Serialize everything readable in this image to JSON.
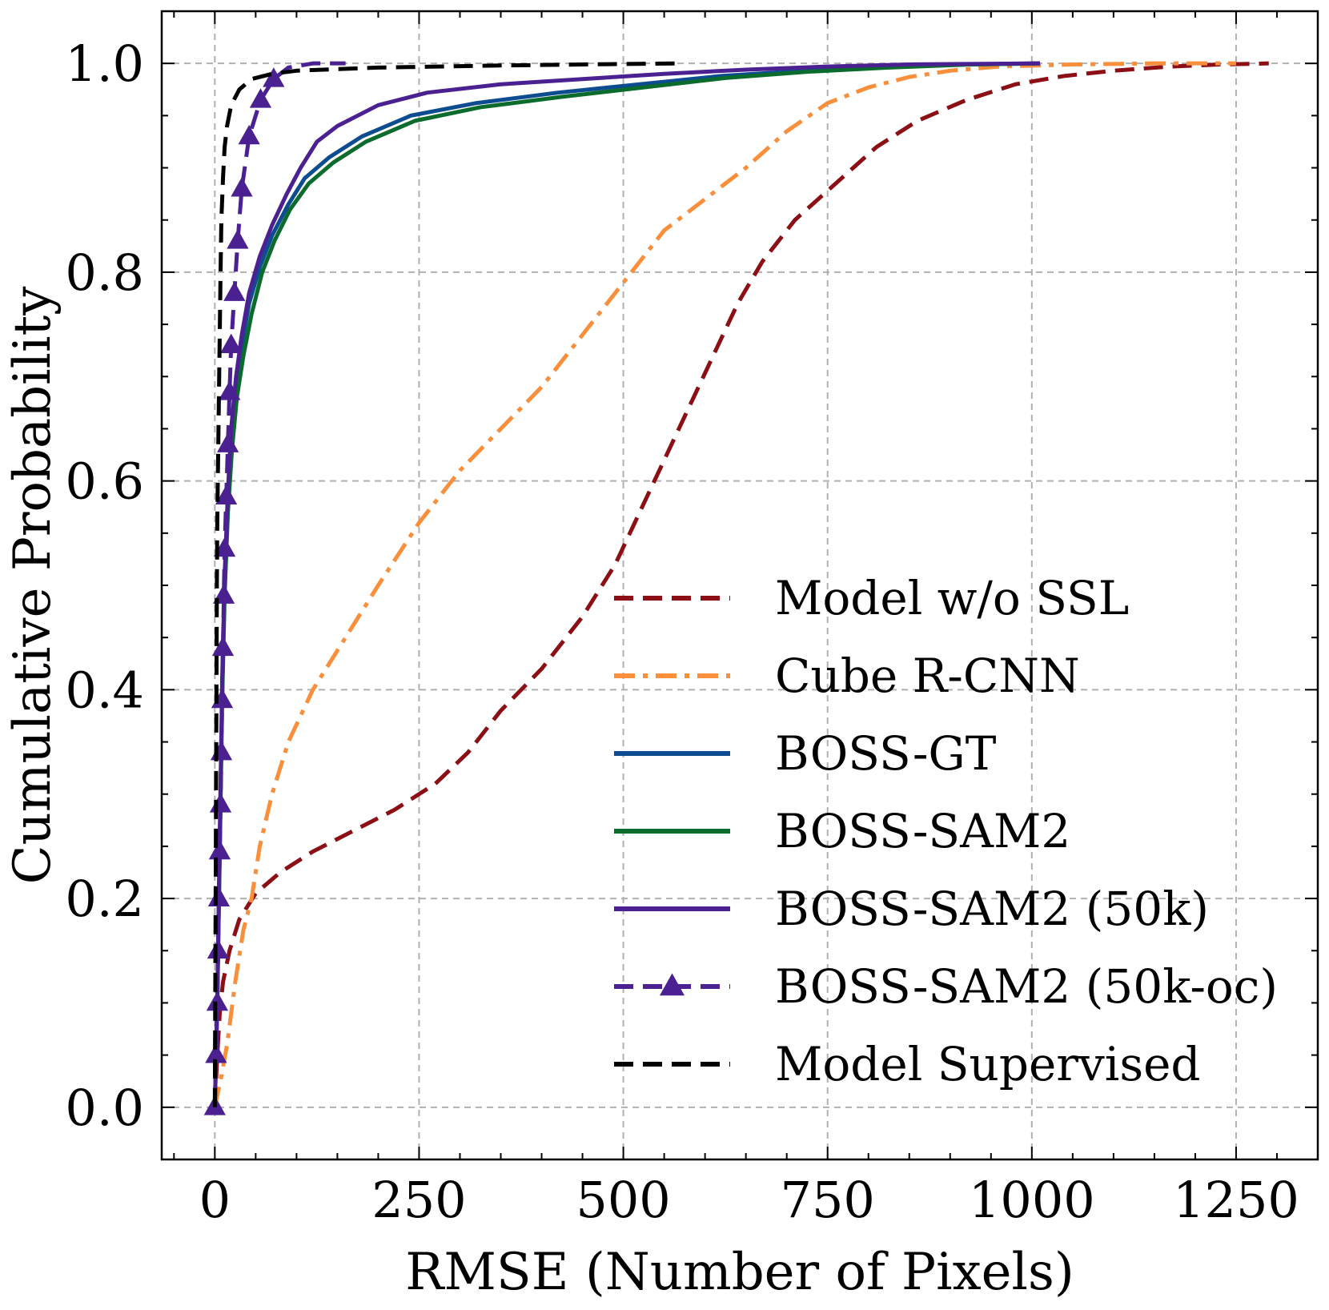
{
  "chart_data": {
    "type": "line",
    "title": "",
    "xlabel": "RMSE (Number of Pixels)",
    "ylabel": "Cumulative Probability",
    "xlim": [
      -65,
      1350
    ],
    "ylim": [
      -0.05,
      1.05
    ],
    "xticks": [
      0,
      250,
      500,
      750,
      1000,
      1250
    ],
    "xtick_labels": [
      "0",
      "250",
      "500",
      "750",
      "1000",
      "1250"
    ],
    "yticks": [
      0.0,
      0.2,
      0.4,
      0.6,
      0.8,
      1.0
    ],
    "ytick_labels": [
      "0.0",
      "0.2",
      "0.4",
      "0.6",
      "0.8",
      "1.0"
    ],
    "grid": true,
    "legend_position": "lower-right",
    "series": [
      {
        "name": "Model w/o SSL",
        "color": "#8b0f14",
        "style": "dashed",
        "marker": "none",
        "points": [
          [
            0,
            0
          ],
          [
            3,
            0.05
          ],
          [
            6,
            0.09
          ],
          [
            10,
            0.12
          ],
          [
            18,
            0.15
          ],
          [
            30,
            0.18
          ],
          [
            50,
            0.205
          ],
          [
            80,
            0.225
          ],
          [
            120,
            0.245
          ],
          [
            170,
            0.265
          ],
          [
            220,
            0.285
          ],
          [
            270,
            0.31
          ],
          [
            310,
            0.34
          ],
          [
            350,
            0.38
          ],
          [
            400,
            0.42
          ],
          [
            450,
            0.47
          ],
          [
            490,
            0.52
          ],
          [
            520,
            0.57
          ],
          [
            550,
            0.62
          ],
          [
            580,
            0.67
          ],
          [
            610,
            0.72
          ],
          [
            640,
            0.77
          ],
          [
            670,
            0.81
          ],
          [
            710,
            0.85
          ],
          [
            760,
            0.885
          ],
          [
            810,
            0.92
          ],
          [
            860,
            0.945
          ],
          [
            920,
            0.965
          ],
          [
            980,
            0.98
          ],
          [
            1040,
            0.988
          ],
          [
            1100,
            0.993
          ],
          [
            1170,
            0.997
          ],
          [
            1230,
            0.999
          ],
          [
            1290,
            1.0
          ]
        ]
      },
      {
        "name": "Cube R-CNN",
        "color": "#f98e3b",
        "style": "dashdot",
        "marker": "none",
        "points": [
          [
            0,
            0
          ],
          [
            8,
            0.03
          ],
          [
            15,
            0.06
          ],
          [
            25,
            0.12
          ],
          [
            35,
            0.17
          ],
          [
            45,
            0.2
          ],
          [
            55,
            0.25
          ],
          [
            70,
            0.3
          ],
          [
            90,
            0.35
          ],
          [
            120,
            0.4
          ],
          [
            160,
            0.45
          ],
          [
            200,
            0.5
          ],
          [
            250,
            0.56
          ],
          [
            300,
            0.61
          ],
          [
            350,
            0.65
          ],
          [
            400,
            0.69
          ],
          [
            450,
            0.74
          ],
          [
            500,
            0.79
          ],
          [
            550,
            0.84
          ],
          [
            600,
            0.87
          ],
          [
            650,
            0.9
          ],
          [
            700,
            0.935
          ],
          [
            750,
            0.962
          ],
          [
            800,
            0.977
          ],
          [
            850,
            0.987
          ],
          [
            900,
            0.993
          ],
          [
            960,
            0.997
          ],
          [
            1050,
            0.999
          ],
          [
            1150,
            1.0
          ],
          [
            1250,
            1.0
          ]
        ]
      },
      {
        "name": "BOSS-GT",
        "color": "#0e4c92",
        "style": "solid",
        "marker": "none",
        "points": [
          [
            0,
            0
          ],
          [
            3,
            0.1
          ],
          [
            6,
            0.25
          ],
          [
            9,
            0.4
          ],
          [
            12,
            0.5
          ],
          [
            16,
            0.58
          ],
          [
            20,
            0.64
          ],
          [
            26,
            0.69
          ],
          [
            33,
            0.73
          ],
          [
            42,
            0.77
          ],
          [
            55,
            0.805
          ],
          [
            70,
            0.835
          ],
          [
            90,
            0.865
          ],
          [
            110,
            0.89
          ],
          [
            140,
            0.91
          ],
          [
            180,
            0.93
          ],
          [
            240,
            0.95
          ],
          [
            320,
            0.962
          ],
          [
            420,
            0.972
          ],
          [
            520,
            0.98
          ],
          [
            620,
            0.988
          ],
          [
            720,
            0.993
          ],
          [
            820,
            0.997
          ],
          [
            920,
            0.999
          ],
          [
            1010,
            1.0
          ]
        ]
      },
      {
        "name": "BOSS-SAM2",
        "color": "#0a6b2d",
        "style": "solid",
        "marker": "none",
        "points": [
          [
            0,
            0
          ],
          [
            3,
            0.1
          ],
          [
            6,
            0.24
          ],
          [
            9,
            0.39
          ],
          [
            12,
            0.49
          ],
          [
            16,
            0.57
          ],
          [
            21,
            0.63
          ],
          [
            27,
            0.68
          ],
          [
            35,
            0.72
          ],
          [
            45,
            0.76
          ],
          [
            58,
            0.8
          ],
          [
            73,
            0.83
          ],
          [
            92,
            0.86
          ],
          [
            115,
            0.885
          ],
          [
            145,
            0.905
          ],
          [
            185,
            0.925
          ],
          [
            245,
            0.945
          ],
          [
            325,
            0.958
          ],
          [
            425,
            0.968
          ],
          [
            525,
            0.977
          ],
          [
            625,
            0.986
          ],
          [
            725,
            0.992
          ],
          [
            825,
            0.996
          ],
          [
            925,
            0.999
          ],
          [
            1010,
            1.0
          ]
        ]
      },
      {
        "name": "BOSS-SAM2 (50k)",
        "color": "#4b2192",
        "style": "solid",
        "marker": "none",
        "points": [
          [
            0,
            0
          ],
          [
            3,
            0.1
          ],
          [
            6,
            0.26
          ],
          [
            9,
            0.41
          ],
          [
            12,
            0.51
          ],
          [
            16,
            0.59
          ],
          [
            20,
            0.65
          ],
          [
            26,
            0.7
          ],
          [
            33,
            0.74
          ],
          [
            42,
            0.78
          ],
          [
            55,
            0.815
          ],
          [
            70,
            0.845
          ],
          [
            88,
            0.875
          ],
          [
            105,
            0.9
          ],
          [
            125,
            0.925
          ],
          [
            150,
            0.94
          ],
          [
            200,
            0.96
          ],
          [
            260,
            0.972
          ],
          [
            350,
            0.98
          ],
          [
            450,
            0.985
          ],
          [
            550,
            0.99
          ],
          [
            650,
            0.994
          ],
          [
            750,
            0.997
          ],
          [
            850,
            0.999
          ],
          [
            1010,
            1.0
          ]
        ]
      },
      {
        "name": "BOSS-SAM2 (50k-oc)",
        "color": "#4b2192",
        "style": "dashed",
        "marker": "triangle",
        "points": [
          [
            0,
            0
          ],
          [
            1.5,
            0.05
          ],
          [
            3,
            0.1
          ],
          [
            4,
            0.15
          ],
          [
            5,
            0.2
          ],
          [
            6,
            0.245
          ],
          [
            7,
            0.29
          ],
          [
            8,
            0.34
          ],
          [
            9,
            0.39
          ],
          [
            10,
            0.44
          ],
          [
            11,
            0.49
          ],
          [
            12,
            0.535
          ],
          [
            14,
            0.585
          ],
          [
            16,
            0.635
          ],
          [
            18,
            0.685
          ],
          [
            20,
            0.73
          ],
          [
            24,
            0.78
          ],
          [
            28,
            0.83
          ],
          [
            33,
            0.88
          ],
          [
            42,
            0.93
          ],
          [
            56,
            0.965
          ],
          [
            72,
            0.985
          ],
          [
            90,
            0.996
          ],
          [
            120,
            1.0
          ],
          [
            160,
            1.0
          ]
        ],
        "marker_points": [
          [
            0,
            0
          ],
          [
            1.5,
            0.05
          ],
          [
            3,
            0.1
          ],
          [
            4,
            0.15
          ],
          [
            5,
            0.2
          ],
          [
            6,
            0.245
          ],
          [
            7,
            0.29
          ],
          [
            8,
            0.34
          ],
          [
            9,
            0.39
          ],
          [
            10,
            0.44
          ],
          [
            11,
            0.49
          ],
          [
            12,
            0.535
          ],
          [
            14,
            0.585
          ],
          [
            16,
            0.635
          ],
          [
            18,
            0.685
          ],
          [
            20,
            0.73
          ],
          [
            24,
            0.78
          ],
          [
            28,
            0.83
          ],
          [
            33,
            0.88
          ],
          [
            42,
            0.93
          ],
          [
            56,
            0.965
          ],
          [
            72,
            0.985
          ]
        ]
      },
      {
        "name": "Model Supervised",
        "color": "#000000",
        "style": "dashed",
        "marker": "none",
        "points": [
          [
            0,
            0
          ],
          [
            0.5,
            0.1
          ],
          [
            1,
            0.2
          ],
          [
            1.5,
            0.3
          ],
          [
            2,
            0.4
          ],
          [
            2.5,
            0.5
          ],
          [
            3,
            0.56
          ],
          [
            4,
            0.62
          ],
          [
            5,
            0.68
          ],
          [
            6,
            0.74
          ],
          [
            7,
            0.8
          ],
          [
            8,
            0.85
          ],
          [
            10,
            0.89
          ],
          [
            12,
            0.92
          ],
          [
            15,
            0.94
          ],
          [
            20,
            0.96
          ],
          [
            30,
            0.975
          ],
          [
            45,
            0.985
          ],
          [
            70,
            0.99
          ],
          [
            100,
            0.993
          ],
          [
            200,
            0.996
          ],
          [
            350,
            0.998
          ],
          [
            450,
            0.999
          ],
          [
            570,
            1.0
          ]
        ]
      }
    ]
  }
}
